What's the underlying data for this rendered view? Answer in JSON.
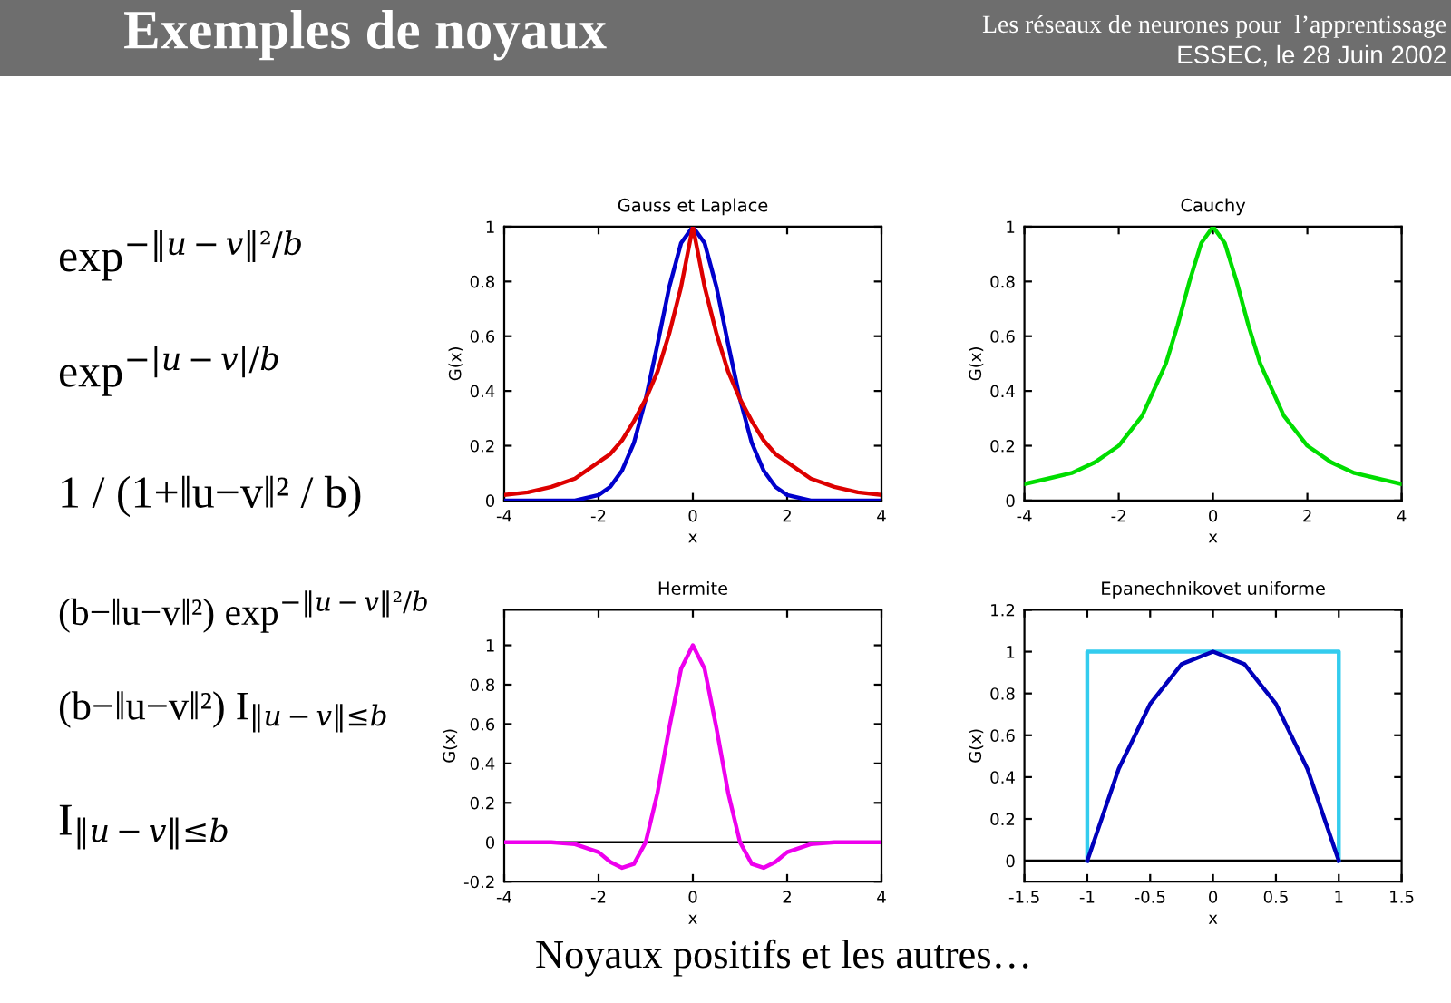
{
  "chart_data": [
    {
      "type": "other",
      "title": "Exemples de noyaux",
      "annotations": [
        "Les réseaux de neurones pour  l’apprentissage",
        "ESSEC, le 28 Juin 2002",
        "exp$^{−‖u−v‖²/b}$",
        "exp$^{−|u−v|/b}$",
        "1 / (1+‖u−v‖² / b)",
        "(b−‖u−v‖²) exp$^{−‖u−v‖²/b}$",
        "(b−‖u−v‖²) I$_{‖u−v‖≤b}$",
        "I$_{‖u−v‖≤b}$",
        "Noyaux positifs et les autres…"
      ]
    },
    {
      "type": "line",
      "title": "Gauss et Laplace",
      "xlabel": "x",
      "ylabel": "G(x)",
      "xlim": [
        -4,
        4
      ],
      "ylim": [
        0,
        1
      ],
      "xticks": [
        -4,
        -2,
        0,
        2,
        4
      ],
      "yticks": [
        0,
        0.2,
        0.4,
        0.6,
        0.8,
        1
      ],
      "x": [
        -4,
        -3.5,
        -3,
        -2.5,
        -2,
        -1.75,
        -1.5,
        -1.25,
        -1,
        -0.75,
        -0.5,
        -0.25,
        0,
        0.25,
        0.5,
        0.75,
        1,
        1.25,
        1.5,
        1.75,
        2,
        2.5,
        3,
        3.5,
        4
      ],
      "series": [
        {
          "color": "#0000cc",
          "values": [
            0,
            0,
            0,
            0,
            0.02,
            0.05,
            0.11,
            0.21,
            0.37,
            0.57,
            0.78,
            0.94,
            1,
            0.94,
            0.78,
            0.57,
            0.37,
            0.21,
            0.11,
            0.05,
            0.02,
            0,
            0,
            0,
            0
          ]
        },
        {
          "color": "#dd0000",
          "values": [
            0.02,
            0.03,
            0.05,
            0.08,
            0.14,
            0.17,
            0.22,
            0.29,
            0.37,
            0.47,
            0.61,
            0.78,
            1,
            0.78,
            0.61,
            0.47,
            0.37,
            0.29,
            0.22,
            0.17,
            0.14,
            0.08,
            0.05,
            0.03,
            0.02
          ]
        }
      ]
    },
    {
      "type": "line",
      "title": "Cauchy",
      "xlabel": "x",
      "ylabel": "G(x)",
      "xlim": [
        -4,
        4
      ],
      "ylim": [
        0,
        1
      ],
      "xticks": [
        -4,
        -2,
        0,
        2,
        4
      ],
      "yticks": [
        0,
        0.2,
        0.4,
        0.6,
        0.8,
        1
      ],
      "x": [
        -4,
        -3.5,
        -3,
        -2.5,
        -2,
        -1.5,
        -1,
        -0.75,
        -0.5,
        -0.25,
        0,
        0.25,
        0.5,
        0.75,
        1,
        1.5,
        2,
        2.5,
        3,
        3.5,
        4
      ],
      "series": [
        {
          "color": "#00dd00",
          "values": [
            0.06,
            0.08,
            0.1,
            0.14,
            0.2,
            0.31,
            0.5,
            0.64,
            0.8,
            0.94,
            1,
            0.94,
            0.8,
            0.64,
            0.5,
            0.31,
            0.2,
            0.14,
            0.1,
            0.08,
            0.06
          ]
        }
      ]
    },
    {
      "type": "line",
      "title": "Hermite",
      "xlabel": "x",
      "ylabel": "G(x)",
      "xlim": [
        -4,
        4
      ],
      "ylim": [
        -0.2,
        1.18
      ],
      "xticks": [
        -4,
        -2,
        0,
        2,
        4
      ],
      "yticks": [
        -0.2,
        0,
        0.2,
        0.4,
        0.6,
        0.8,
        1
      ],
      "ref_lines": [
        {
          "axis": "y",
          "value": 0,
          "color": "#000000"
        }
      ],
      "x": [
        -4,
        -3.5,
        -3,
        -2.5,
        -2,
        -1.75,
        -1.5,
        -1.25,
        -1,
        -0.75,
        -0.5,
        -0.25,
        0,
        0.25,
        0.5,
        0.75,
        1,
        1.25,
        1.5,
        1.75,
        2,
        2.5,
        3,
        3.5,
        4
      ],
      "series": [
        {
          "color": "#ee00ee",
          "values": [
            0,
            0,
            0,
            -0.01,
            -0.05,
            -0.1,
            -0.13,
            -0.11,
            0,
            0.25,
            0.58,
            0.88,
            1,
            0.88,
            0.58,
            0.25,
            0,
            -0.11,
            -0.13,
            -0.1,
            -0.05,
            -0.01,
            0,
            0,
            0
          ]
        }
      ]
    },
    {
      "type": "line",
      "title": "Epanechnikovet uniforme",
      "xlabel": "x",
      "ylabel": "G(x)",
      "xlim": [
        -1.5,
        1.5
      ],
      "ylim": [
        -0.1,
        1.2
      ],
      "xticks": [
        -1.5,
        -1,
        -0.5,
        0,
        0.5,
        1,
        1.5
      ],
      "yticks": [
        0,
        0.2,
        0.4,
        0.6,
        0.8,
        1,
        1.2
      ],
      "ref_lines": [
        {
          "axis": "y",
          "value": 0,
          "color": "#000000"
        }
      ],
      "series": [
        {
          "color": "#33ccee",
          "x": [
            -1,
            -1,
            1,
            1
          ],
          "values": [
            0,
            1,
            1,
            0
          ]
        },
        {
          "color": "#0000bb",
          "x": [
            -1,
            -0.75,
            -0.5,
            -0.25,
            0,
            0.25,
            0.5,
            0.75,
            1
          ],
          "values": [
            0,
            0.44,
            0.75,
            0.94,
            1,
            0.94,
            0.75,
            0.44,
            0
          ]
        }
      ]
    }
  ]
}
